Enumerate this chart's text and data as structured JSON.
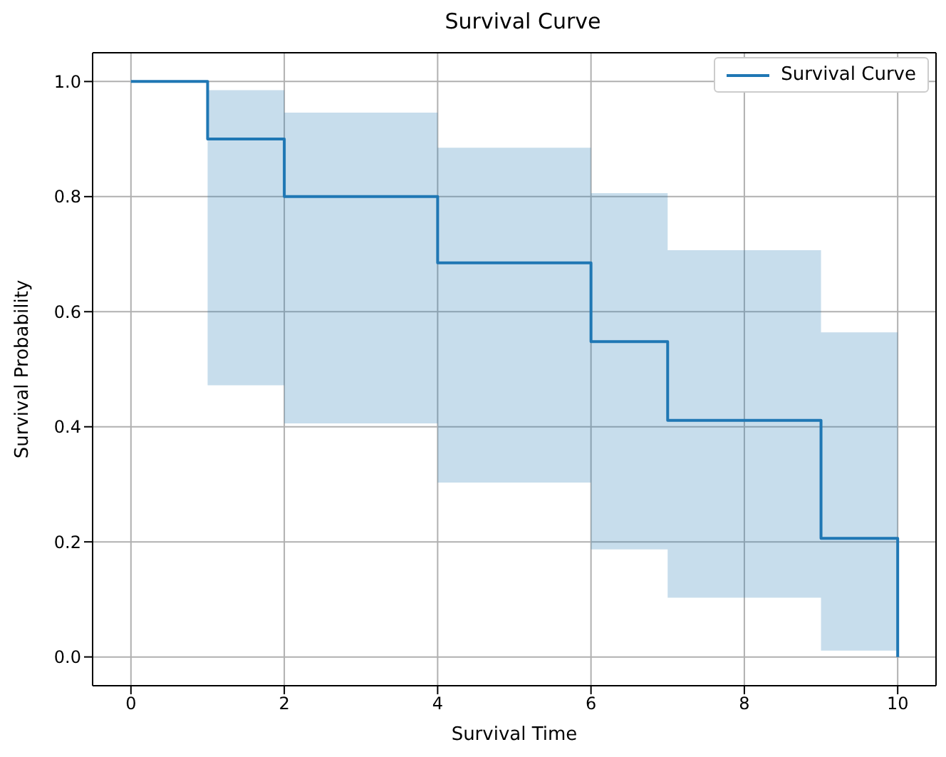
{
  "chart_data": {
    "type": "step",
    "title": "Survival Curve",
    "xlabel": "Survival Time",
    "ylabel": "Survival Probability",
    "x": [
      0,
      1,
      2,
      4,
      6,
      7,
      9,
      10
    ],
    "series": [
      {
        "name": "Survival Curve",
        "color": "#1f77b4",
        "values": [
          1,
          0.9,
          0.8,
          0.685,
          0.548,
          0.411,
          0.206,
          0
        ],
        "lower": [
          1,
          0.472,
          0.406,
          0.303,
          0.187,
          0.103,
          0.011,
          0.011
        ],
        "upper": [
          1,
          0.985,
          0.946,
          0.885,
          0.806,
          0.707,
          0.564,
          0.564
        ]
      }
    ],
    "xlim": [
      -0.5,
      10.5
    ],
    "xticks": [
      0,
      2,
      4,
      6,
      8,
      10
    ],
    "ylim": [
      -0.05,
      1.05
    ],
    "yticks": [
      {
        "value": 0,
        "label": "0.0"
      },
      {
        "value": 0.2,
        "label": "0.2"
      },
      {
        "value": 0.4,
        "label": "0.4"
      },
      {
        "value": 0.6,
        "label": "0.6"
      },
      {
        "value": 0.8,
        "label": "0.8"
      },
      {
        "value": 1,
        "label": "1.0"
      }
    ],
    "grid": true,
    "legend": "top right",
    "line_style": "solid"
  }
}
